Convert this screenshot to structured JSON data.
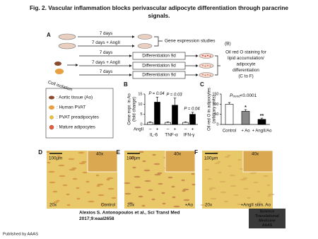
{
  "title": [
    "Fig. 2. Vascular inflammation blocks perivascular adipocyte differentiation through paracrine",
    "signals."
  ],
  "panel_a": {
    "label": "A",
    "arrows": [
      "7 days",
      "7 days + AngII",
      "7 days",
      "7 days + AngII",
      "7 days"
    ],
    "gene_expression": "Gene expression studies",
    "gene_expression_ref": "(B)",
    "differentiation": [
      "Differentiation 9d",
      "Differentiation 9d",
      "Differentiation 9d"
    ],
    "staining": [
      "Oil red O staining for",
      "lipid accumulation/",
      "adipocyte",
      "differentiation",
      "(C to F)"
    ],
    "cell_isolation": "Cell isolation"
  },
  "legend": [
    ": Aortic tissue (Ao)",
    ": Human  PVAT",
    ": PVAT preadipocytes",
    ": Mature adipocytes"
  ],
  "chart_data": [
    {
      "type": "grouped-bar",
      "label": "B",
      "ylabel": [
        "Gene expr. in Ao",
        "(fold change)"
      ],
      "categories": [
        "IL-6",
        "TNF-α",
        "IFN-γ"
      ],
      "row_label": "AngII",
      "series": [
        {
          "name": "–",
          "color": "#ffffff",
          "values": [
            1,
            1,
            1
          ],
          "errors": [
            0.3,
            0.3,
            0.3
          ]
        },
        {
          "name": "+",
          "color": "#000000",
          "values": [
            11,
            9.5,
            5
          ],
          "errors": [
            2.5,
            3.5,
            1
          ]
        }
      ],
      "annotations": [
        "P = 0.04",
        "P = 0.03",
        "P = 0.04"
      ],
      "ylim": [
        0,
        15
      ],
      "yticks": [
        0,
        5,
        10,
        15
      ]
    },
    {
      "type": "bar",
      "label": "C",
      "ylabel": [
        "Oil red O in adipocytes",
        "(arbitrary units)"
      ],
      "categories": [
        "Control",
        "+ Ao",
        "+ AngII/Ao"
      ],
      "values": [
        100,
        65,
        25
      ],
      "errors": [
        8,
        8,
        6
      ],
      "colors": [
        "#ffffff",
        "#888888",
        "#000000"
      ],
      "significance": [
        null,
        "*",
        "**"
      ],
      "trend_label": {
        "p": "P",
        "sub": "trend",
        "text": "<0.0001"
      },
      "ylim": [
        0,
        150
      ],
      "yticks": [
        0,
        50,
        100,
        150
      ]
    }
  ],
  "micrographs": [
    {
      "label": "D",
      "scale": "100µm",
      "inset": "40x",
      "magnification": "20x",
      "condition": "Control"
    },
    {
      "label": "E",
      "scale": "100µm",
      "inset": "40x",
      "magnification": "20x",
      "condition": "+Ao"
    },
    {
      "label": "F",
      "scale": "100µm",
      "inset": "40x",
      "magnification": "20x",
      "condition": "+AngII stim. Ao"
    }
  ],
  "citation": [
    "Alexios S. Antonopoulos et al., Sci Transl Med",
    "2017;9:eaal2658"
  ],
  "logo": [
    "Science",
    "Translational",
    "Medicine",
    "AAAS"
  ],
  "footer": "Published by AAAS"
}
